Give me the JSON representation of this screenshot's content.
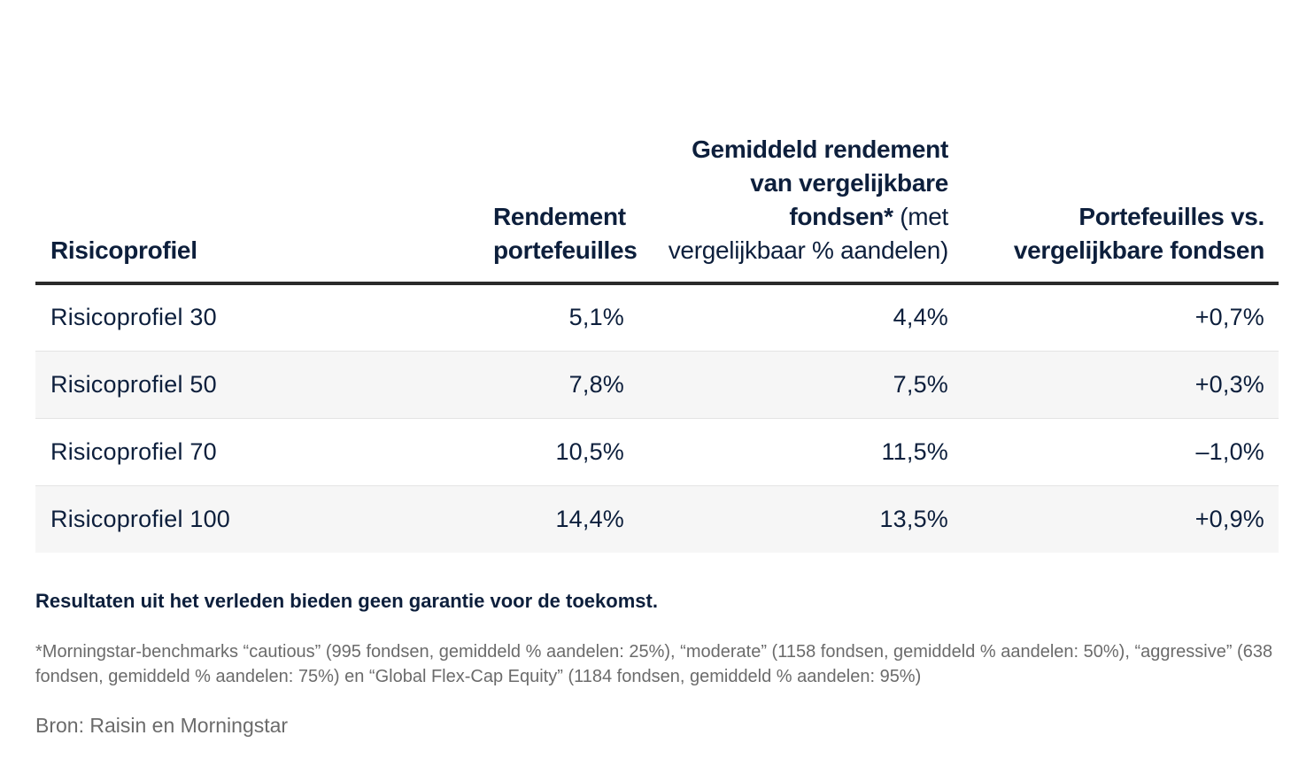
{
  "table": {
    "headers": [
      {
        "bold": "Risicoprofiel",
        "normal": ""
      },
      {
        "bold": "Rendement portefeuilles",
        "normal": ""
      },
      {
        "bold": "Gemiddeld rendement van vergelijkbare fondsen*",
        "normal": " (met vergelijkbaar % aandelen)"
      },
      {
        "bold": "Portefeuilles vs. vergelijkbare fondsen",
        "normal": ""
      }
    ],
    "rows": [
      {
        "profile": "Risicoprofiel 30",
        "portfolio": "5,1%",
        "funds": "4,4%",
        "diff": "+0,7%"
      },
      {
        "profile": "Risicoprofiel 50",
        "portfolio": "7,8%",
        "funds": "7,5%",
        "diff": "+0,3%"
      },
      {
        "profile": "Risicoprofiel 70",
        "portfolio": "10,5%",
        "funds": "11,5%",
        "diff": "–1,0%"
      },
      {
        "profile": "Risicoprofiel 100",
        "portfolio": "14,4%",
        "funds": "13,5%",
        "diff": "+0,9%"
      }
    ]
  },
  "disclaimer": "Resultaten uit het verleden bieden geen garantie voor de toekomst.",
  "footnote": "*Morningstar-benchmarks “cautious” (995 fondsen, gemiddeld % aandelen: 25%), “moderate” (1158 fondsen, gemiddeld % aandelen: 50%), “aggressive” (638 fondsen, gemiddeld % aandelen: 75%) en “Global Flex-Cap Equity” (1184 fondsen, gemiddeld % aandelen: 95%)",
  "source": "Bron: Raisin en Morningstar",
  "colors": {
    "text": "#0d1f3c",
    "muted": "#6b6b6b",
    "row_shade": "#f6f6f6",
    "header_rule": "#2b2b2b"
  }
}
